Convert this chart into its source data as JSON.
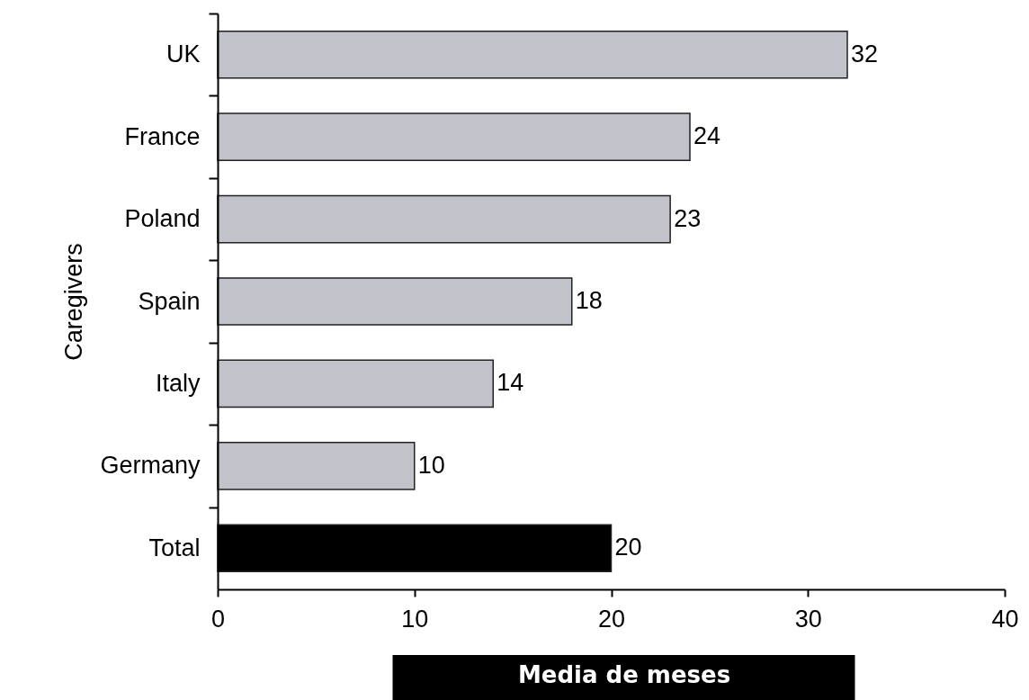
{
  "chart_data": {
    "type": "bar",
    "orientation": "horizontal",
    "categories": [
      "UK",
      "France",
      "Poland",
      "Spain",
      "Italy",
      "Germany",
      "Total"
    ],
    "values": [
      32,
      24,
      23,
      18,
      14,
      10,
      20
    ],
    "colors": [
      "#c2c2ca",
      "#c2c2ca",
      "#c2c2ca",
      "#c2c2ca",
      "#c2c2ca",
      "#c2c2ca",
      "#000000"
    ],
    "xlabel": "Media de meses",
    "ylabel": "Caregivers",
    "xlim": [
      0,
      40
    ],
    "xticks": [
      0,
      10,
      20,
      30,
      40
    ],
    "data_labels": true,
    "grid": false
  }
}
